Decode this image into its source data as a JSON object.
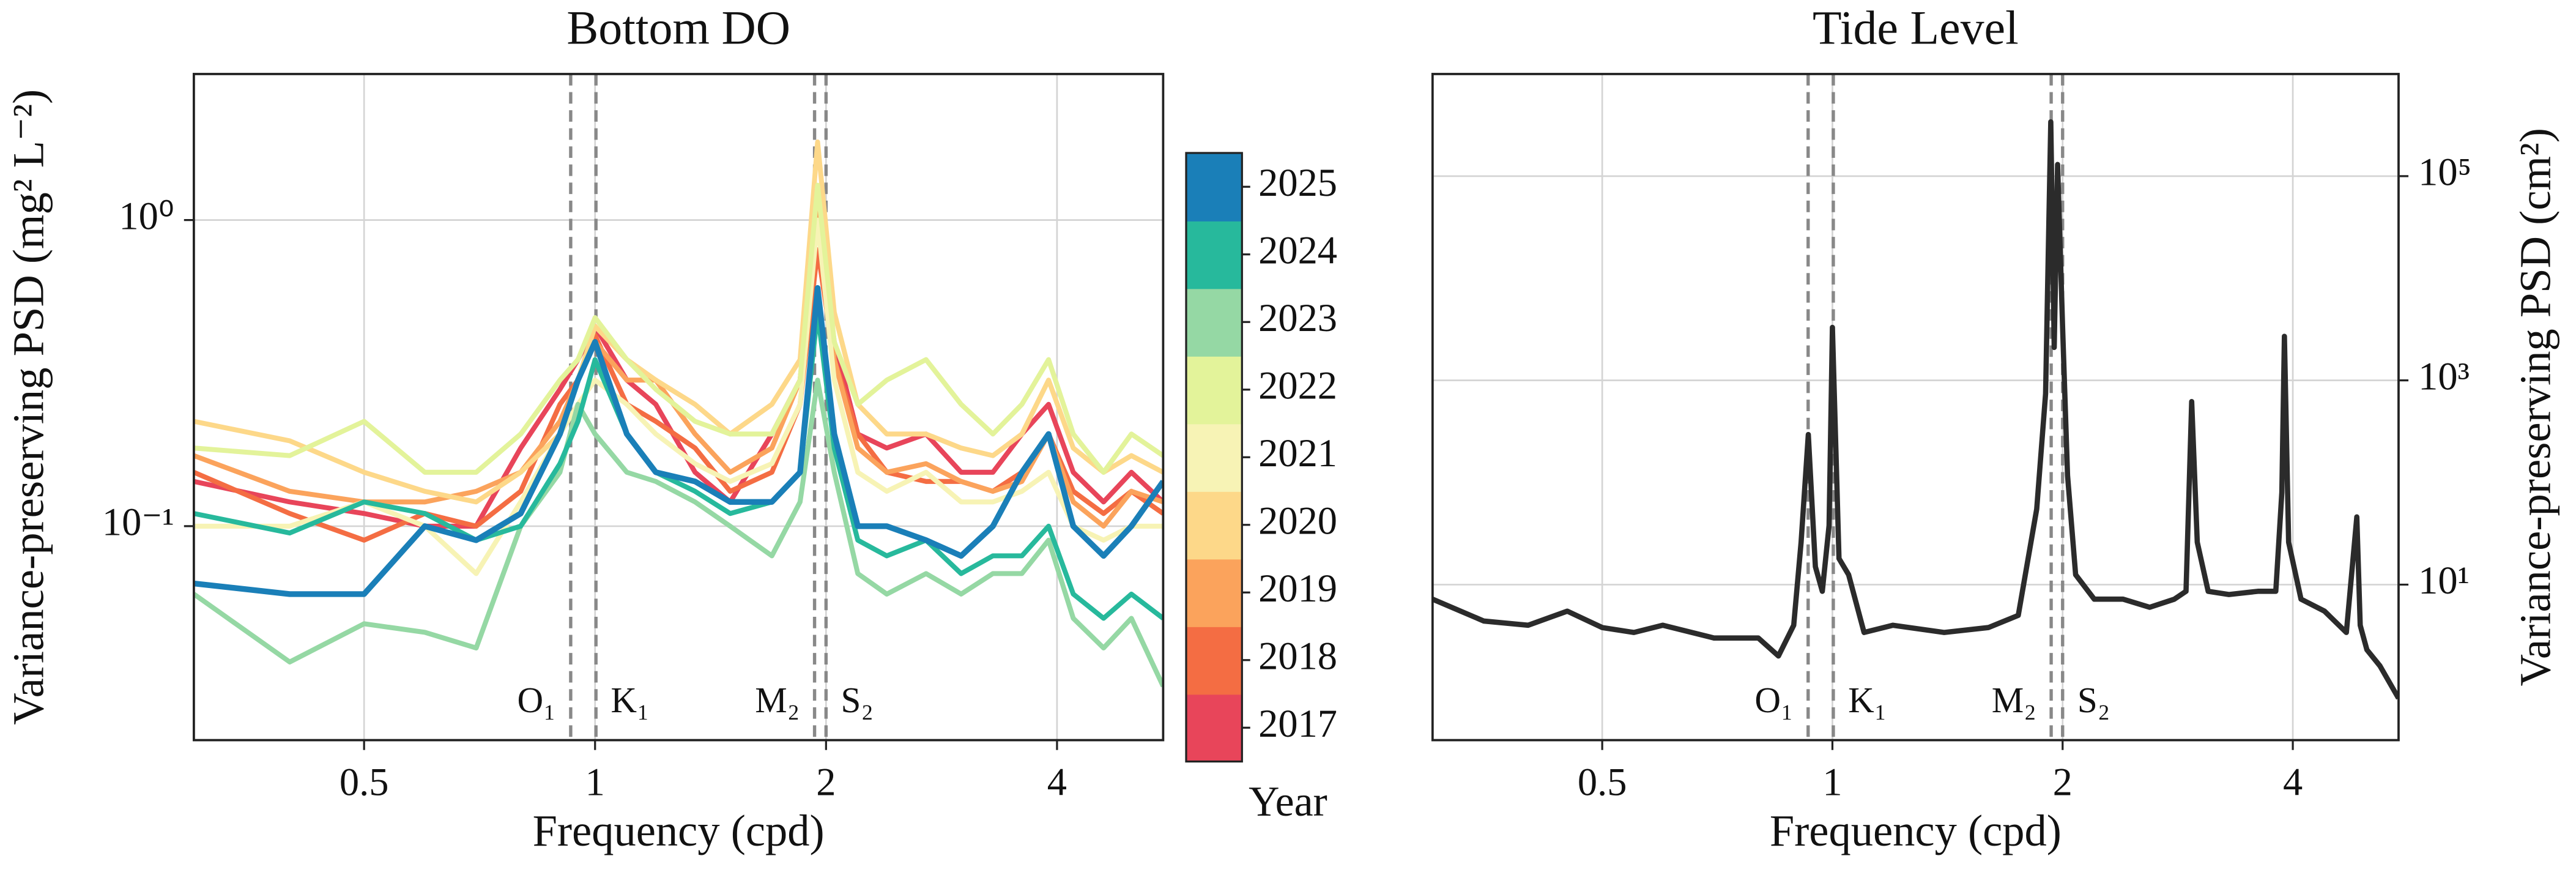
{
  "chart_data": [
    {
      "type": "line",
      "title": "Bottom DO",
      "xlabel": "Frequency (cpd)",
      "ylabel": "Variance-preserving PSD (mg² L⁻²)",
      "xscale": "log",
      "yscale": "log",
      "grid": true,
      "xlim": [
        0.3,
        5.5
      ],
      "ylim": [
        0.02,
        3
      ],
      "xticks": [
        0.5,
        1,
        2,
        4
      ],
      "yticks": [
        {
          "value": 0.1,
          "label": "10⁻¹"
        },
        {
          "value": 1,
          "label": "10⁰"
        }
      ],
      "colorbar_label": "Year",
      "tidal_lines": [
        {
          "label": "O₁",
          "frequency": 0.9295
        },
        {
          "label": "K₁",
          "frequency": 1.0027
        },
        {
          "label": "M₂",
          "frequency": 1.9323
        },
        {
          "label": "S₂",
          "frequency": 2.0
        }
      ],
      "x": [
        0.3,
        0.4,
        0.5,
        0.6,
        0.7,
        0.8,
        0.9,
        0.95,
        1.0,
        1.1,
        1.2,
        1.35,
        1.5,
        1.7,
        1.85,
        1.95,
        2.05,
        2.2,
        2.4,
        2.7,
        3.0,
        3.3,
        3.6,
        3.9,
        4.2,
        4.6,
        5.0,
        5.5
      ],
      "series": [
        {
          "name": "2017",
          "color": "#e8455a",
          "values": [
            0.14,
            0.12,
            0.11,
            0.1,
            0.1,
            0.18,
            0.28,
            0.35,
            0.45,
            0.3,
            0.25,
            0.15,
            0.12,
            0.2,
            0.3,
            1.0,
            0.4,
            0.2,
            0.18,
            0.2,
            0.15,
            0.15,
            0.2,
            0.25,
            0.15,
            0.12,
            0.15,
            0.12
          ]
        },
        {
          "name": "2018",
          "color": "#f46d43",
          "values": [
            0.15,
            0.11,
            0.09,
            0.11,
            0.1,
            0.13,
            0.25,
            0.3,
            0.42,
            0.25,
            0.22,
            0.18,
            0.13,
            0.15,
            0.25,
            0.8,
            0.35,
            0.2,
            0.15,
            0.14,
            0.14,
            0.13,
            0.15,
            0.2,
            0.13,
            0.11,
            0.13,
            0.11
          ]
        },
        {
          "name": "2019",
          "color": "#fba35c",
          "values": [
            0.17,
            0.13,
            0.12,
            0.12,
            0.13,
            0.15,
            0.22,
            0.3,
            0.4,
            0.3,
            0.3,
            0.2,
            0.15,
            0.18,
            0.3,
            1.2,
            0.35,
            0.18,
            0.15,
            0.16,
            0.14,
            0.13,
            0.14,
            0.2,
            0.12,
            0.1,
            0.13,
            0.12
          ]
        },
        {
          "name": "2020",
          "color": "#fdd889",
          "values": [
            0.22,
            0.19,
            0.15,
            0.13,
            0.12,
            0.15,
            0.2,
            0.3,
            0.45,
            0.35,
            0.3,
            0.25,
            0.2,
            0.25,
            0.35,
            1.8,
            0.5,
            0.25,
            0.2,
            0.2,
            0.18,
            0.17,
            0.2,
            0.3,
            0.18,
            0.15,
            0.17,
            0.15
          ]
        },
        {
          "name": "2021",
          "color": "#f7f3b5",
          "values": [
            0.1,
            0.1,
            0.12,
            0.1,
            0.07,
            0.12,
            0.2,
            0.25,
            0.3,
            0.25,
            0.2,
            0.16,
            0.14,
            0.16,
            0.25,
            1.0,
            0.3,
            0.15,
            0.13,
            0.15,
            0.12,
            0.12,
            0.13,
            0.15,
            0.1,
            0.09,
            0.1,
            0.1
          ]
        },
        {
          "name": "2022",
          "color": "#e3f39a",
          "values": [
            0.18,
            0.17,
            0.22,
            0.15,
            0.15,
            0.2,
            0.3,
            0.35,
            0.48,
            0.35,
            0.28,
            0.22,
            0.2,
            0.2,
            0.3,
            1.3,
            0.4,
            0.25,
            0.3,
            0.35,
            0.25,
            0.2,
            0.25,
            0.35,
            0.2,
            0.15,
            0.2,
            0.17
          ]
        },
        {
          "name": "2023",
          "color": "#95d8a4",
          "values": [
            0.06,
            0.036,
            0.048,
            0.045,
            0.04,
            0.1,
            0.15,
            0.25,
            0.2,
            0.15,
            0.14,
            0.12,
            0.1,
            0.08,
            0.12,
            0.3,
            0.15,
            0.07,
            0.06,
            0.07,
            0.06,
            0.07,
            0.07,
            0.09,
            0.05,
            0.04,
            0.05,
            0.03
          ]
        },
        {
          "name": "2024",
          "color": "#27b99c",
          "values": [
            0.11,
            0.095,
            0.12,
            0.11,
            0.09,
            0.1,
            0.16,
            0.22,
            0.35,
            0.2,
            0.15,
            0.13,
            0.11,
            0.12,
            0.15,
            0.5,
            0.18,
            0.09,
            0.08,
            0.09,
            0.07,
            0.08,
            0.08,
            0.1,
            0.06,
            0.05,
            0.06,
            0.05
          ]
        },
        {
          "name": "2025",
          "color": "#1a7fb8",
          "values": [
            0.065,
            0.06,
            0.06,
            0.1,
            0.09,
            0.11,
            0.2,
            0.3,
            0.4,
            0.2,
            0.15,
            0.14,
            0.12,
            0.12,
            0.15,
            0.6,
            0.2,
            0.1,
            0.1,
            0.09,
            0.08,
            0.1,
            0.15,
            0.2,
            0.1,
            0.08,
            0.1,
            0.14
          ]
        }
      ]
    },
    {
      "type": "line",
      "title": "Tide Level",
      "xlabel": "Frequency (cpd)",
      "ylabel": "Variance-preserving PSD (cm²)",
      "xscale": "log",
      "yscale": "log",
      "grid": true,
      "yaxis_side": "right",
      "xlim": [
        0.3,
        5.5
      ],
      "ylim": [
        0.3,
        1000000
      ],
      "xticks": [
        0.5,
        1,
        2,
        4
      ],
      "yticks": [
        {
          "value": 10,
          "label": "10¹"
        },
        {
          "value": 1000,
          "label": "10³"
        },
        {
          "value": 100000,
          "label": "10⁵"
        }
      ],
      "tidal_lines": [
        {
          "label": "O₁",
          "frequency": 0.9295
        },
        {
          "label": "K₁",
          "frequency": 1.0027
        },
        {
          "label": "M₂",
          "frequency": 1.9323
        },
        {
          "label": "S₂",
          "frequency": 2.0
        }
      ],
      "color": "#2b2b2b",
      "x": [
        0.3,
        0.35,
        0.4,
        0.45,
        0.5,
        0.55,
        0.6,
        0.7,
        0.8,
        0.85,
        0.89,
        0.91,
        0.93,
        0.95,
        0.97,
        0.99,
        1.0,
        1.02,
        1.05,
        1.1,
        1.2,
        1.4,
        1.6,
        1.75,
        1.85,
        1.9,
        1.93,
        1.95,
        1.97,
        2.0,
        2.03,
        2.08,
        2.2,
        2.4,
        2.6,
        2.8,
        2.9,
        2.95,
        3.0,
        3.1,
        3.3,
        3.6,
        3.8,
        3.87,
        3.9,
        3.95,
        4.1,
        4.4,
        4.7,
        4.85,
        4.9,
        5.0,
        5.2,
        5.5
      ],
      "values": [
        7.2,
        4.4,
        4,
        5.5,
        3.8,
        3.4,
        4,
        3,
        3,
        2,
        4,
        26,
        295,
        15,
        8.6,
        38,
        3300,
        18,
        12.5,
        3.4,
        4,
        3.4,
        3.8,
        5,
        55,
        740,
        340000,
        2100,
        130000,
        3300,
        117,
        12.5,
        7.2,
        7.2,
        6,
        7.2,
        8.6,
        620,
        26,
        8.6,
        8,
        8.6,
        8.6,
        80,
        2700,
        26,
        7.2,
        5.5,
        3.4,
        46,
        4,
        2.3,
        1.6,
        0.77
      ]
    }
  ]
}
